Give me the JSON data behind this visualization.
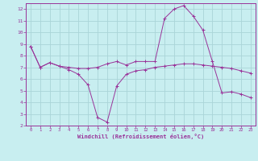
{
  "xlabel": "Windchill (Refroidissement éolien,°C)",
  "background_color": "#c8eef0",
  "grid_color": "#aad4d8",
  "line_color": "#993399",
  "spine_color": "#993399",
  "xlim": [
    -0.5,
    23.5
  ],
  "ylim": [
    2,
    12.5
  ],
  "xticks": [
    0,
    1,
    2,
    3,
    4,
    5,
    6,
    7,
    8,
    9,
    10,
    11,
    12,
    13,
    14,
    15,
    16,
    17,
    18,
    19,
    20,
    21,
    22,
    23
  ],
  "yticks": [
    2,
    3,
    4,
    5,
    6,
    7,
    8,
    9,
    10,
    11,
    12
  ],
  "series1_x": [
    0,
    1,
    2,
    3,
    4,
    5,
    6,
    7,
    8,
    9,
    10,
    11,
    12,
    13,
    14,
    15,
    16,
    17,
    18,
    19,
    20,
    21,
    22,
    23
  ],
  "series1_y": [
    8.8,
    7.0,
    7.4,
    7.1,
    7.0,
    6.9,
    6.9,
    7.0,
    7.3,
    7.5,
    7.2,
    7.5,
    7.5,
    7.5,
    11.2,
    12.0,
    12.3,
    11.4,
    10.2,
    7.5,
    4.8,
    4.9,
    4.7,
    4.4
  ],
  "series2_x": [
    0,
    1,
    2,
    3,
    4,
    5,
    6,
    7,
    8,
    9,
    10,
    11,
    12,
    13,
    14,
    15,
    16,
    17,
    18,
    19,
    20,
    21,
    22,
    23
  ],
  "series2_y": [
    8.8,
    7.0,
    7.4,
    7.1,
    6.8,
    6.4,
    5.5,
    2.7,
    2.3,
    5.4,
    6.4,
    6.7,
    6.8,
    7.0,
    7.1,
    7.2,
    7.3,
    7.3,
    7.2,
    7.1,
    7.0,
    6.9,
    6.7,
    6.5
  ],
  "marker": "+"
}
